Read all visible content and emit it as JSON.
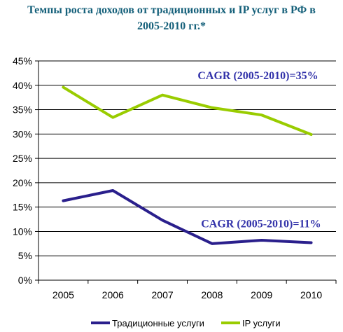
{
  "chart_data": {
    "type": "line",
    "title": [
      "Темпы роста доходов от традиционных и IP услуг в РФ в",
      "2005-2010 гг.*"
    ],
    "categories": [
      "2005",
      "2006",
      "2007",
      "2008",
      "2009",
      "2010"
    ],
    "y_ticks": [
      "0%",
      "5%",
      "10%",
      "15%",
      "20%",
      "25%",
      "30%",
      "35%",
      "40%",
      "45%"
    ],
    "ylim": [
      0,
      45
    ],
    "series": [
      {
        "name": "Традиционные услуги",
        "color": "#2a1f8c",
        "values": [
          16.3,
          18.4,
          12.3,
          7.5,
          8.2,
          7.7
        ]
      },
      {
        "name": "IP услуги",
        "color": "#99cc00",
        "values": [
          39.6,
          33.4,
          38.0,
          35.4,
          33.9,
          29.9
        ]
      }
    ],
    "annotations": [
      {
        "text": "CAGR (2005-2010)=35%",
        "color": "#3333aa",
        "series": 1
      },
      {
        "text": "CAGR (2005-2010)=11%",
        "color": "#3333aa",
        "series": 0
      }
    ],
    "grid": true,
    "legend": "bottom"
  }
}
